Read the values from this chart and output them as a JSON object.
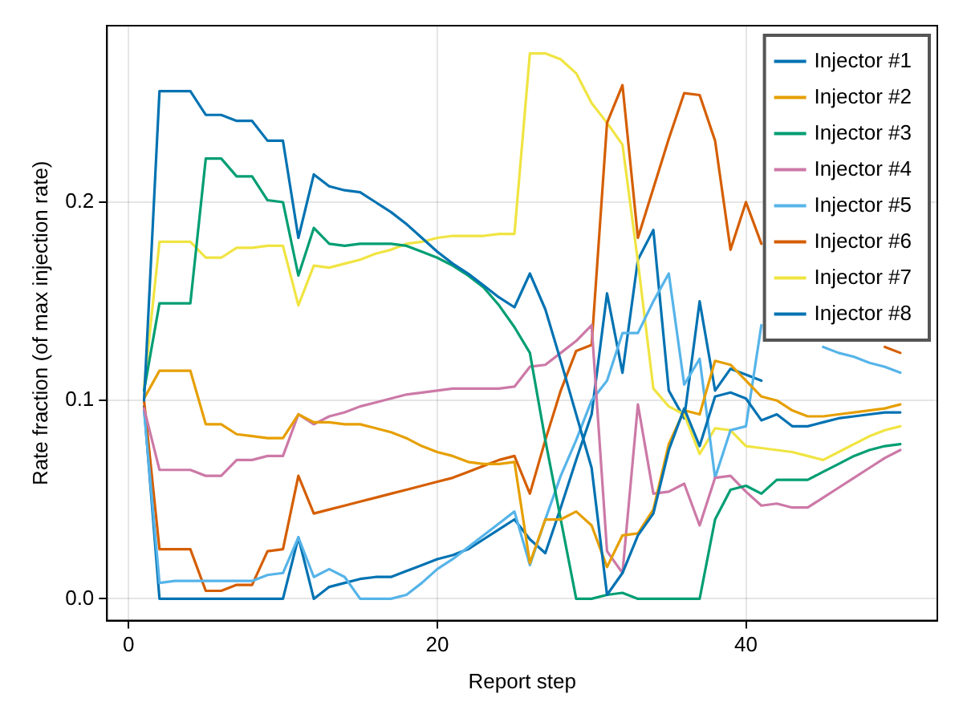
{
  "chart_data": {
    "type": "line",
    "xlabel": "Report step",
    "ylabel": "Rate fraction (of max injection rate)",
    "x": [
      1,
      2,
      3,
      4,
      5,
      6,
      7,
      8,
      9,
      10,
      11,
      12,
      13,
      14,
      15,
      16,
      17,
      18,
      19,
      20,
      21,
      22,
      23,
      24,
      25,
      26,
      27,
      28,
      29,
      30,
      31,
      32,
      33,
      34,
      35,
      36,
      37,
      38,
      39,
      40,
      41,
      42,
      43,
      44,
      45,
      46,
      47,
      48,
      49,
      50
    ],
    "xlim": [
      -1.4,
      52.4
    ],
    "xticks": [
      0,
      20,
      40
    ],
    "ylim": [
      -0.011,
      0.289
    ],
    "yticks": [
      {
        "value": 0,
        "label": "0.0"
      },
      {
        "value": 0.1,
        "label": "0.1"
      },
      {
        "value": 0.2,
        "label": "0.2"
      }
    ],
    "grid": true,
    "legend": "top right",
    "line_style": "solid",
    "marker": "none",
    "series": [
      {
        "name": "Injector #1",
        "color": "#0072b2",
        "values": [
          0.1,
          0.256,
          0.256,
          0.256,
          0.244,
          0.244,
          0.241,
          0.241,
          0.231,
          0.231,
          0.182,
          0.214,
          0.208,
          0.206,
          0.205,
          0.2,
          0.195,
          0.189,
          0.182,
          0.175,
          0.169,
          0.164,
          0.158,
          0.152,
          0.147,
          0.164,
          0.146,
          0.12,
          0.093,
          0.066,
          0.002,
          0.013,
          0.032,
          0.043,
          0.075,
          0.096,
          0.077,
          0.102,
          0.104,
          0.101,
          0.09,
          0.093,
          0.087,
          0.087,
          0.089,
          0.091,
          0.092,
          0.093,
          0.094,
          0.094
        ]
      },
      {
        "name": "Injector #2",
        "color": "#e69f00",
        "values": [
          0.101,
          0.115,
          0.115,
          0.115,
          0.088,
          0.088,
          0.083,
          0.082,
          0.081,
          0.081,
          0.093,
          0.089,
          0.089,
          0.088,
          0.088,
          0.086,
          0.084,
          0.081,
          0.077,
          0.074,
          0.072,
          0.069,
          0.068,
          0.068,
          0.069,
          0.018,
          0.04,
          0.04,
          0.044,
          0.037,
          0.016,
          0.032,
          0.033,
          0.045,
          0.078,
          0.095,
          0.093,
          0.12,
          0.118,
          0.11,
          0.102,
          0.1,
          0.095,
          0.092,
          0.092,
          0.093,
          0.094,
          0.095,
          0.096,
          0.098
        ]
      },
      {
        "name": "Injector #3",
        "color": "#009e73",
        "values": [
          0.105,
          0.149,
          0.149,
          0.149,
          0.222,
          0.222,
          0.213,
          0.213,
          0.201,
          0.2,
          0.163,
          0.187,
          0.179,
          0.178,
          0.179,
          0.179,
          0.179,
          0.178,
          0.175,
          0.172,
          0.168,
          0.163,
          0.157,
          0.148,
          0.137,
          0.124,
          0.08,
          0.04,
          0,
          0,
          0.002,
          0.003,
          0,
          0,
          0,
          0,
          0,
          0.04,
          0.055,
          0.057,
          0.053,
          0.06,
          0.06,
          0.06,
          0.064,
          0.068,
          0.072,
          0.075,
          0.077,
          0.078
        ]
      },
      {
        "name": "Injector #4",
        "color": "#cc79a7",
        "values": [
          0.096,
          0.065,
          0.065,
          0.065,
          0.062,
          0.062,
          0.07,
          0.07,
          0.072,
          0.072,
          0.093,
          0.088,
          0.092,
          0.094,
          0.097,
          0.099,
          0.101,
          0.103,
          0.104,
          0.105,
          0.106,
          0.106,
          0.106,
          0.106,
          0.107,
          0.117,
          0.118,
          0.124,
          0.13,
          0.138,
          0.024,
          0.013,
          0.098,
          0.053,
          0.054,
          0.058,
          0.037,
          0.061,
          0.062,
          0.054,
          0.047,
          0.048,
          0.046,
          0.046,
          0.051,
          0.056,
          0.061,
          0.066,
          0.071,
          0.075
        ]
      },
      {
        "name": "Injector #5",
        "color": "#56b4e9",
        "values": [
          0.095,
          0.008,
          0.009,
          0.009,
          0.009,
          0.009,
          0.009,
          0.009,
          0.012,
          0.013,
          0.031,
          0.011,
          0.015,
          0.011,
          0,
          0,
          0,
          0.002,
          0.008,
          0.015,
          0.02,
          0.026,
          0.032,
          0.038,
          0.044,
          0.017,
          0.04,
          0.062,
          0.08,
          0.1,
          0.11,
          0.134,
          0.134,
          0.15,
          0.164,
          0.108,
          0.121,
          0.061,
          0.085,
          0.087,
          0.138,
          null,
          null,
          null,
          0.127,
          0.124,
          0.122,
          0.119,
          0.117,
          0.114
        ]
      },
      {
        "name": "Injector #6",
        "color": "#d55e00",
        "values": [
          0.1,
          0.025,
          0.025,
          0.025,
          0.004,
          0.004,
          0.007,
          0.007,
          0.024,
          0.025,
          0.062,
          0.043,
          0.045,
          0.047,
          0.049,
          0.051,
          0.053,
          0.055,
          0.057,
          0.059,
          0.061,
          0.064,
          0.067,
          0.07,
          0.072,
          0.053,
          0.08,
          0.105,
          0.125,
          0.128,
          0.24,
          0.259,
          0.182,
          0.207,
          0.232,
          0.255,
          0.254,
          0.231,
          0.176,
          0.2,
          0.179,
          null,
          null,
          null,
          null,
          null,
          null,
          null,
          0.127,
          0.124
        ]
      },
      {
        "name": "Injector #7",
        "color": "#f0e442",
        "values": [
          0.107,
          0.18,
          0.18,
          0.18,
          0.172,
          0.172,
          0.177,
          0.177,
          0.178,
          0.178,
          0.148,
          0.168,
          0.167,
          0.169,
          0.171,
          0.174,
          0.176,
          0.179,
          0.18,
          0.182,
          0.183,
          0.183,
          0.183,
          0.184,
          0.184,
          0.275,
          0.275,
          0.272,
          0.265,
          0.25,
          0.24,
          0.229,
          0.17,
          0.106,
          0.097,
          0.093,
          0.073,
          0.086,
          0.085,
          0.077,
          0.076,
          0.075,
          0.074,
          0.072,
          0.07,
          0.074,
          0.078,
          0.082,
          0.085,
          0.087
        ]
      },
      {
        "name": "Injector #8",
        "color": "#0072b2",
        "values": [
          0.097,
          0,
          0,
          0,
          0,
          0,
          0,
          0,
          0,
          0,
          0.031,
          0,
          0.006,
          0.008,
          0.01,
          0.011,
          0.011,
          0.014,
          0.017,
          0.02,
          0.022,
          0.025,
          0.03,
          0.035,
          0.04,
          0.03,
          0.023,
          0.046,
          0.07,
          0.093,
          0.154,
          0.114,
          0.171,
          0.186,
          0.105,
          0.091,
          0.15,
          0.105,
          0.116,
          0.113,
          0.11,
          null,
          null,
          null,
          null,
          null,
          null,
          null,
          null,
          null
        ]
      }
    ]
  }
}
